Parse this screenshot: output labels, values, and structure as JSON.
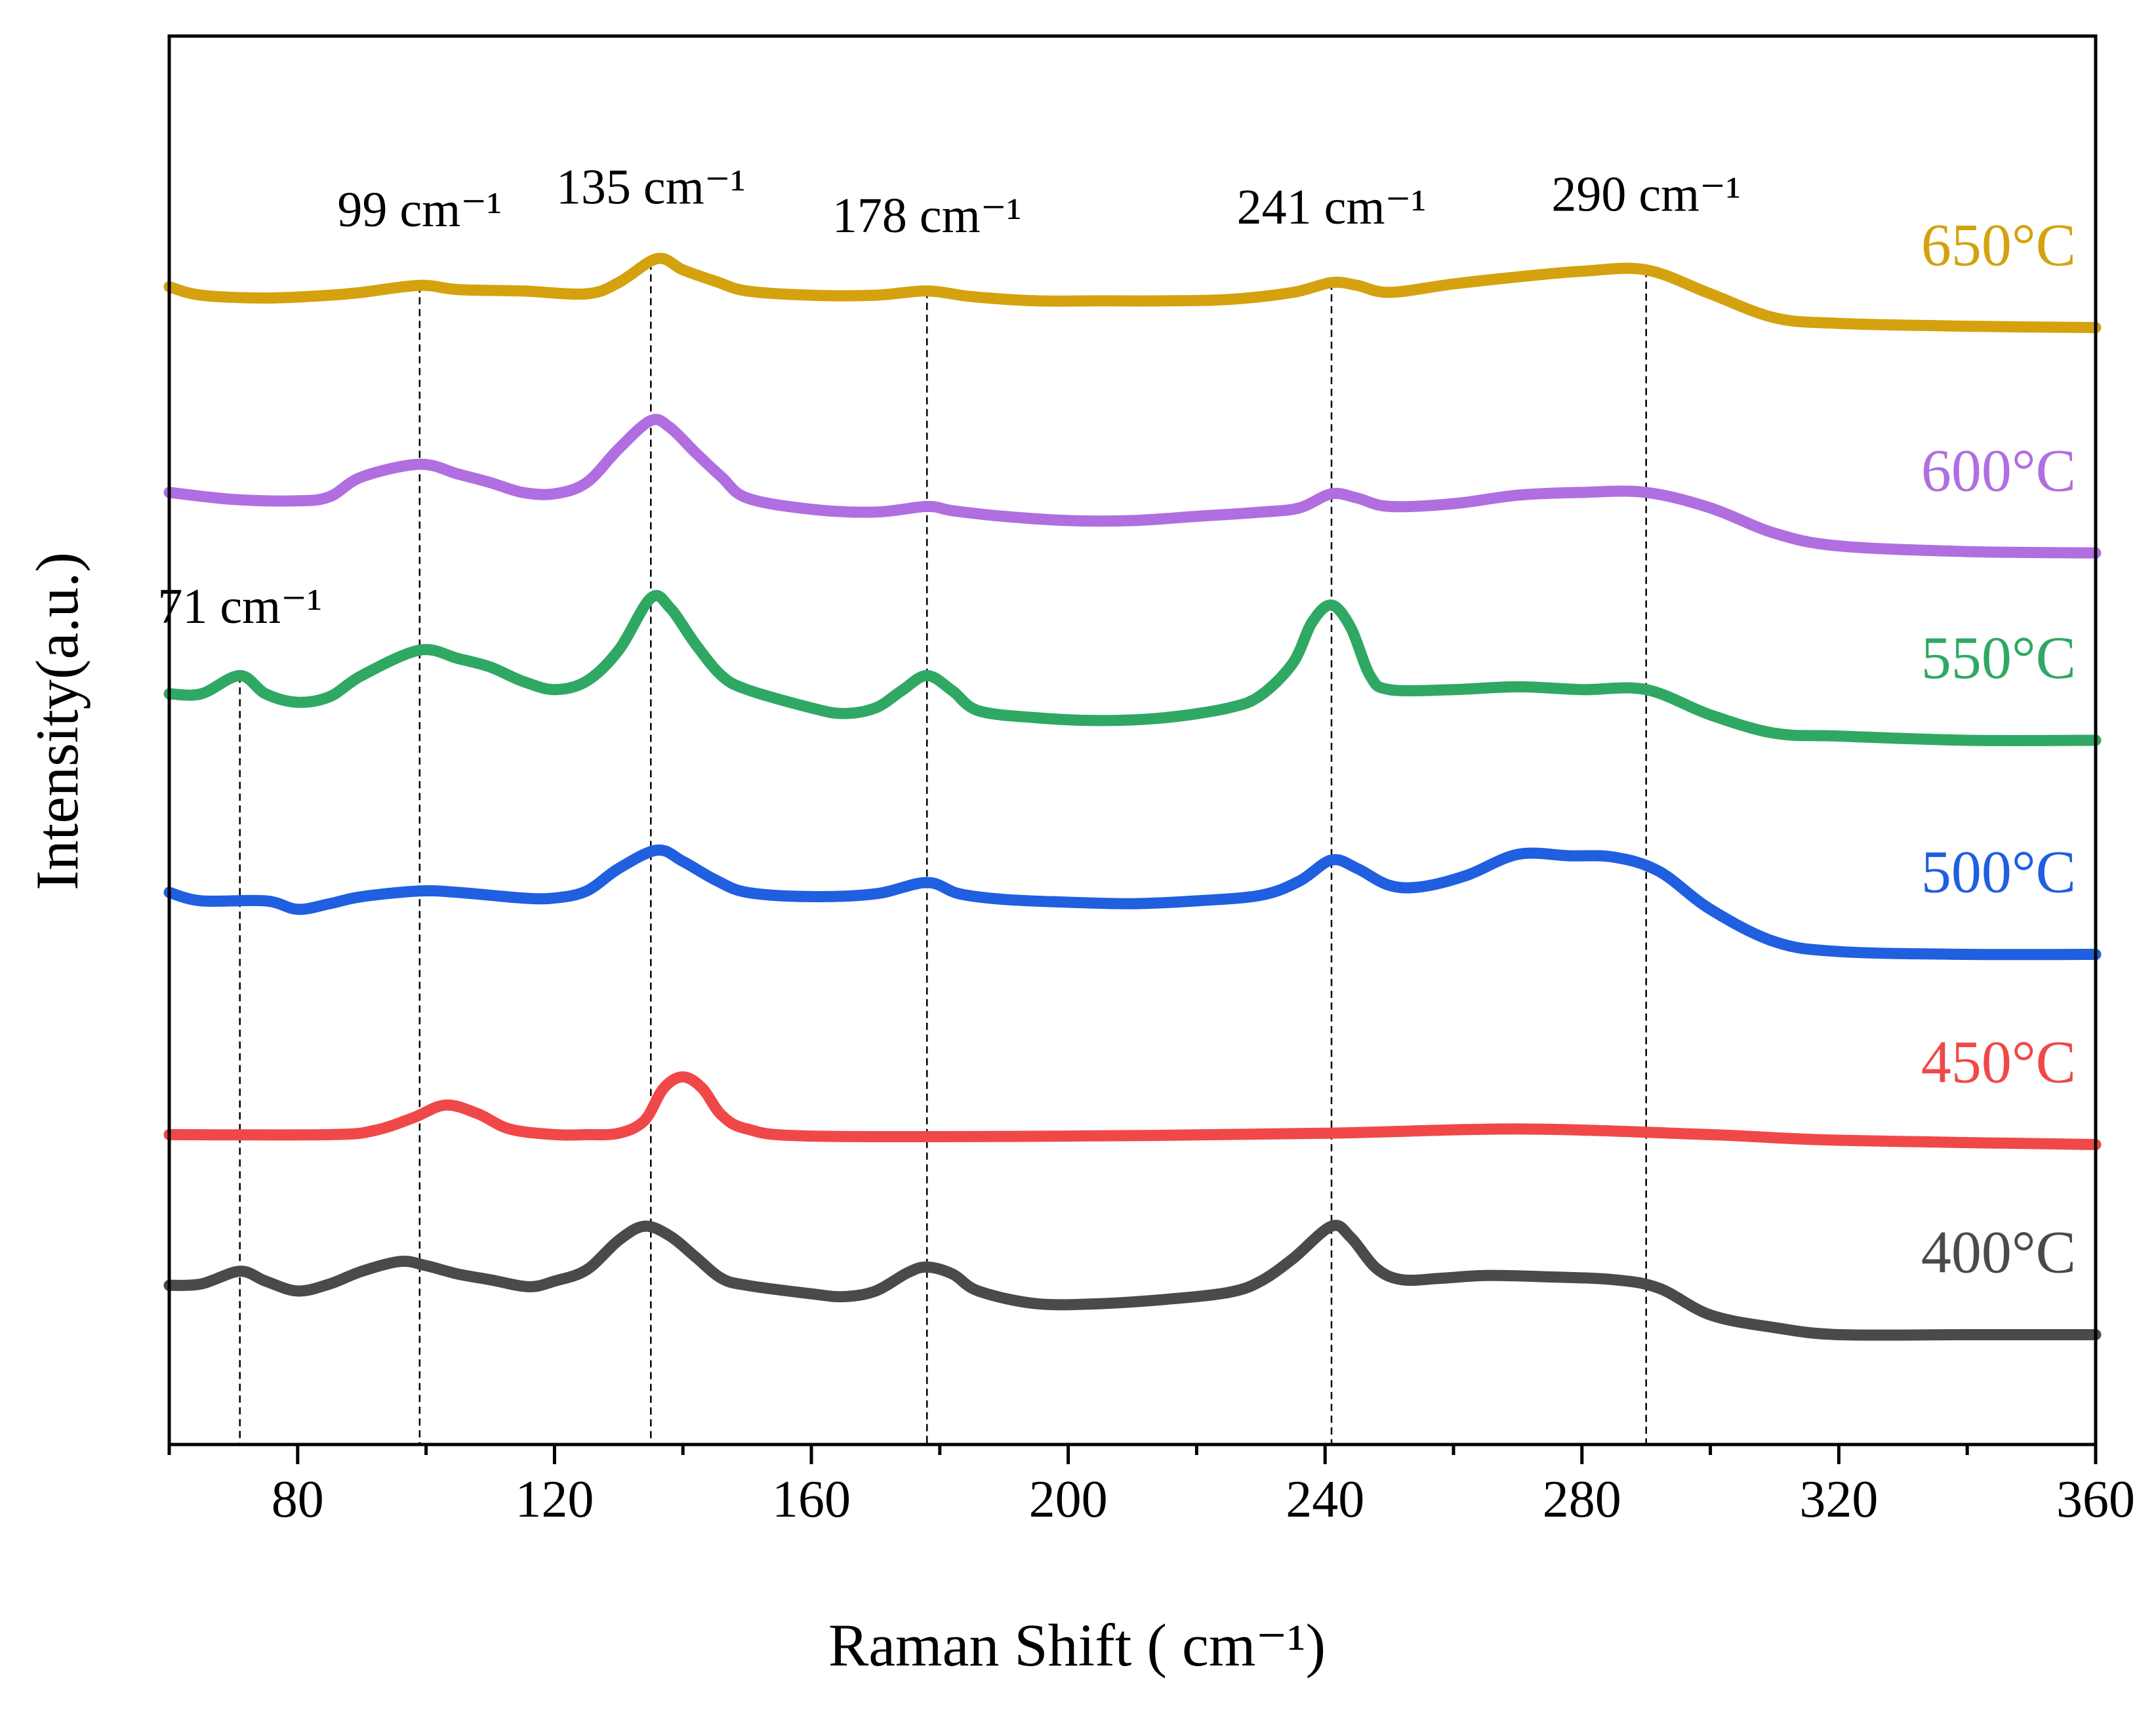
{
  "chart_data": {
    "type": "line",
    "title": "",
    "xlabel": "Raman Shift ( cm⁻¹)",
    "ylabel": "Intensity(a.u.)",
    "xlim": [
      60,
      360
    ],
    "ylim": [
      0,
      100
    ],
    "xticks": [
      80,
      120,
      160,
      200,
      240,
      280,
      320,
      360
    ],
    "xtick_labels": [
      "80",
      "120",
      "160",
      "200",
      "240",
      "280",
      "320",
      "360"
    ],
    "grid": false,
    "peak_markers": [
      {
        "x": 71,
        "label": "71 cm⁻¹"
      },
      {
        "x": 99,
        "label": "99 cm⁻¹"
      },
      {
        "x": 135,
        "label": "135 cm⁻¹"
      },
      {
        "x": 178,
        "label": "178 cm⁻¹"
      },
      {
        "x": 241,
        "label": "241 cm⁻¹"
      },
      {
        "x": 290,
        "label": "290 cm⁻¹"
      }
    ],
    "series": [
      {
        "name": "400°C",
        "label": "400°C",
        "color": "#4a4a4a",
        "x": [
          60,
          65,
          71,
          75,
          80,
          85,
          90,
          96,
          100,
          105,
          110,
          116,
          120,
          125,
          130,
          134,
          138,
          142,
          146,
          150,
          160,
          165,
          170,
          175,
          178,
          182,
          186,
          195,
          205,
          215,
          225,
          230,
          235,
          241,
          244,
          248,
          252,
          258,
          265,
          275,
          285,
          292,
          300,
          310,
          320,
          340,
          360
        ],
        "y": [
          11.3,
          11.4,
          12.3,
          11.6,
          10.9,
          11.4,
          12.3,
          13.0,
          12.7,
          12.1,
          11.7,
          11.2,
          11.6,
          12.4,
          14.5,
          15.5,
          14.8,
          13.3,
          11.8,
          11.3,
          10.7,
          10.5,
          10.9,
          12.2,
          12.6,
          12.1,
          10.9,
          10.0,
          10.0,
          10.3,
          10.8,
          11.6,
          13.2,
          15.5,
          14.7,
          12.5,
          11.7,
          11.8,
          12.0,
          11.9,
          11.7,
          11.1,
          9.2,
          8.3,
          7.8,
          7.8,
          7.8
        ]
      },
      {
        "name": "450°C",
        "label": "450°C",
        "color": "#f04848",
        "x": [
          60,
          85,
          92,
          98,
          103,
          108,
          113,
          120,
          125,
          130,
          134,
          137,
          140,
          143,
          146,
          150,
          160,
          200,
          240,
          270,
          300,
          320,
          360
        ],
        "y": [
          22.0,
          22.0,
          22.3,
          23.2,
          24.1,
          23.5,
          22.4,
          22.0,
          22.0,
          22.1,
          23.0,
          25.3,
          26.1,
          25.3,
          23.4,
          22.4,
          21.9,
          21.9,
          22.1,
          22.4,
          22.0,
          21.6,
          21.3
        ]
      },
      {
        "name": "500°C",
        "label": "500°C",
        "color": "#1f5fe0",
        "x": [
          60,
          65,
          75,
          80,
          85,
          90,
          99,
          105,
          115,
          120,
          125,
          130,
          136,
          140,
          145,
          150,
          160,
          170,
          178,
          183,
          190,
          200,
          210,
          220,
          230,
          236,
          241,
          245,
          250,
          255,
          262,
          270,
          278,
          285,
          292,
          300,
          310,
          320,
          340,
          360
        ],
        "y": [
          39.2,
          38.6,
          38.6,
          38.0,
          38.4,
          38.9,
          39.3,
          39.2,
          38.8,
          38.8,
          39.3,
          40.9,
          42.2,
          41.4,
          40.1,
          39.2,
          38.9,
          39.1,
          39.9,
          39.1,
          38.7,
          38.5,
          38.4,
          38.6,
          39.0,
          40.0,
          41.5,
          40.9,
          39.7,
          39.6,
          40.4,
          41.9,
          41.8,
          41.7,
          40.7,
          38.0,
          35.7,
          35.0,
          34.8,
          34.8
        ]
      },
      {
        "name": "550°C",
        "label": "550°C",
        "color": "#2fa864",
        "x": [
          60,
          65,
          71,
          75,
          80,
          85,
          90,
          99,
          105,
          110,
          115,
          120,
          125,
          130,
          135,
          138,
          142,
          146,
          150,
          160,
          165,
          170,
          174,
          178,
          182,
          186,
          195,
          205,
          215,
          225,
          230,
          235,
          238,
          241,
          244,
          247,
          250,
          260,
          270,
          280,
          290,
          300,
          310,
          320,
          340,
          360
        ],
        "y": [
          53.3,
          53.3,
          54.6,
          53.3,
          52.7,
          53.1,
          54.6,
          56.4,
          55.8,
          55.2,
          54.2,
          53.6,
          54.2,
          56.4,
          60.1,
          59.4,
          56.8,
          54.6,
          53.6,
          52.3,
          51.9,
          52.3,
          53.5,
          54.6,
          53.5,
          52.1,
          51.6,
          51.4,
          51.6,
          52.3,
          53.2,
          55.5,
          58.4,
          59.6,
          58.0,
          54.6,
          53.6,
          53.6,
          53.8,
          53.6,
          53.6,
          51.8,
          50.5,
          50.3,
          50.0,
          50.0
        ]
      },
      {
        "name": "600°C",
        "label": "600°C",
        "color": "#b06ee0",
        "x": [
          60,
          70,
          80,
          85,
          90,
          99,
          105,
          110,
          115,
          120,
          125,
          130,
          135,
          138,
          142,
          146,
          150,
          160,
          170,
          178,
          182,
          190,
          200,
          210,
          220,
          230,
          236,
          241,
          245,
          250,
          260,
          270,
          280,
          290,
          300,
          310,
          320,
          340,
          360
        ],
        "y": [
          67.6,
          67.1,
          67.0,
          67.3,
          68.7,
          69.6,
          68.9,
          68.3,
          67.6,
          67.5,
          68.3,
          70.7,
          72.7,
          72.2,
          70.4,
          68.7,
          67.2,
          66.4,
          66.2,
          66.6,
          66.3,
          65.9,
          65.6,
          65.6,
          65.9,
          66.2,
          66.5,
          67.5,
          67.2,
          66.6,
          66.8,
          67.4,
          67.6,
          67.6,
          66.5,
          64.7,
          63.8,
          63.4,
          63.3
        ]
      },
      {
        "name": "650°C",
        "label": "650°C",
        "color": "#d4a20e",
        "x": [
          60,
          65,
          75,
          85,
          90,
          99,
          105,
          115,
          125,
          130,
          136,
          140,
          145,
          150,
          160,
          170,
          178,
          185,
          195,
          205,
          215,
          225,
          235,
          241,
          245,
          250,
          260,
          270,
          280,
          290,
          300,
          310,
          320,
          340,
          360
        ],
        "y": [
          82.2,
          81.6,
          81.4,
          81.6,
          81.8,
          82.3,
          82.0,
          81.9,
          81.7,
          82.5,
          84.2,
          83.4,
          82.6,
          81.9,
          81.6,
          81.6,
          81.9,
          81.5,
          81.2,
          81.2,
          81.2,
          81.3,
          81.8,
          82.5,
          82.3,
          81.8,
          82.4,
          82.9,
          83.3,
          83.4,
          81.7,
          80.0,
          79.6,
          79.4,
          79.3
        ]
      }
    ]
  }
}
